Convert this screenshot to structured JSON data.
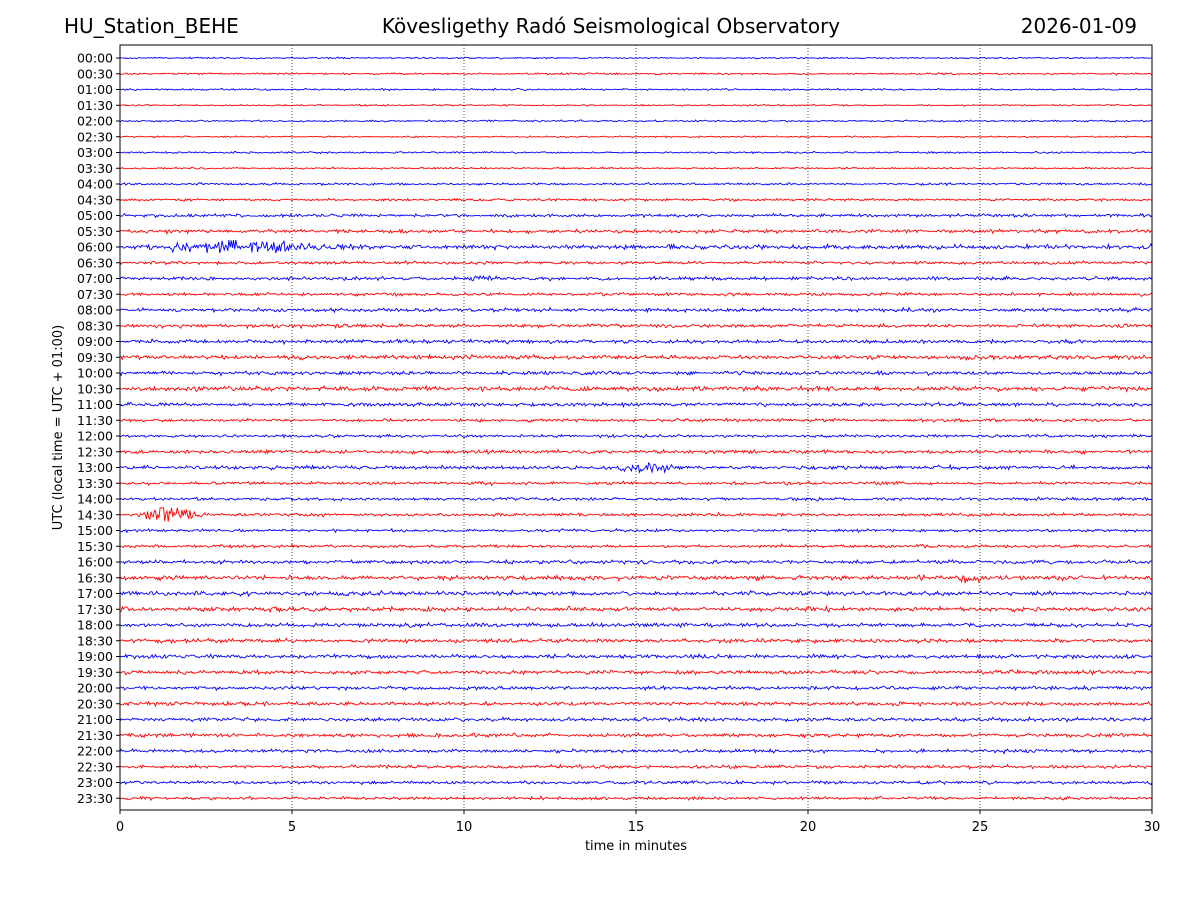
{
  "header": {
    "station": "HU_Station_BEHE",
    "observatory": "Kövesligethy Radó Seismological Observatory",
    "date": "2026-01-09"
  },
  "chart_data": {
    "type": "line",
    "title": "Kövesligethy Radó Seismological Observatory",
    "xlabel": "time in minutes",
    "ylabel": "UTC (local time = UTC + 01:00)",
    "xlim": [
      0,
      30
    ],
    "xticks": [
      0,
      5,
      10,
      15,
      20,
      25,
      30
    ],
    "vertical_gridlines": [
      5,
      10,
      15,
      20,
      25
    ],
    "grid": "vertical dotted",
    "trace_colors": [
      "#0000ff",
      "#ff0000"
    ],
    "rows": [
      "00:00",
      "00:30",
      "01:00",
      "01:30",
      "02:00",
      "02:30",
      "03:00",
      "03:30",
      "04:00",
      "04:30",
      "05:00",
      "05:30",
      "06:00",
      "06:30",
      "07:00",
      "07:30",
      "08:00",
      "08:30",
      "09:00",
      "09:30",
      "10:00",
      "10:30",
      "11:00",
      "11:30",
      "12:00",
      "12:30",
      "13:00",
      "13:30",
      "14:00",
      "14:30",
      "15:00",
      "15:30",
      "16:00",
      "16:30",
      "17:00",
      "17:30",
      "18:00",
      "18:30",
      "19:00",
      "19:30",
      "20:00",
      "20:30",
      "21:00",
      "21:30",
      "22:00",
      "22:30",
      "23:00",
      "23:30"
    ],
    "series_noise_level": [
      0.25,
      0.3,
      0.3,
      0.25,
      0.3,
      0.25,
      0.3,
      0.3,
      0.35,
      0.4,
      0.5,
      0.6,
      0.7,
      0.5,
      0.55,
      0.5,
      0.6,
      0.6,
      0.6,
      0.7,
      0.6,
      0.75,
      0.6,
      0.5,
      0.45,
      0.6,
      0.6,
      0.5,
      0.5,
      0.5,
      0.45,
      0.5,
      0.6,
      0.75,
      0.7,
      0.7,
      0.65,
      0.65,
      0.65,
      0.65,
      0.6,
      0.6,
      0.6,
      0.6,
      0.55,
      0.55,
      0.5,
      0.5
    ],
    "events": [
      {
        "row": "06:00",
        "start_min": 1.5,
        "end_min": 7.5,
        "peak_min": 3.4,
        "amplitude": 2.2
      },
      {
        "row": "07:00",
        "start_min": 10.0,
        "end_min": 11.5,
        "peak_min": 10.8,
        "amplitude": 1.3
      },
      {
        "row": "13:00",
        "start_min": 14.5,
        "end_min": 16.5,
        "peak_min": 15.3,
        "amplitude": 1.2
      },
      {
        "row": "14:30",
        "start_min": 0.3,
        "end_min": 2.6,
        "peak_min": 1.5,
        "amplitude": 2.6
      },
      {
        "row": "16:30",
        "start_min": 24.3,
        "end_min": 25.0,
        "peak_min": 24.7,
        "amplitude": 1.5
      }
    ]
  }
}
